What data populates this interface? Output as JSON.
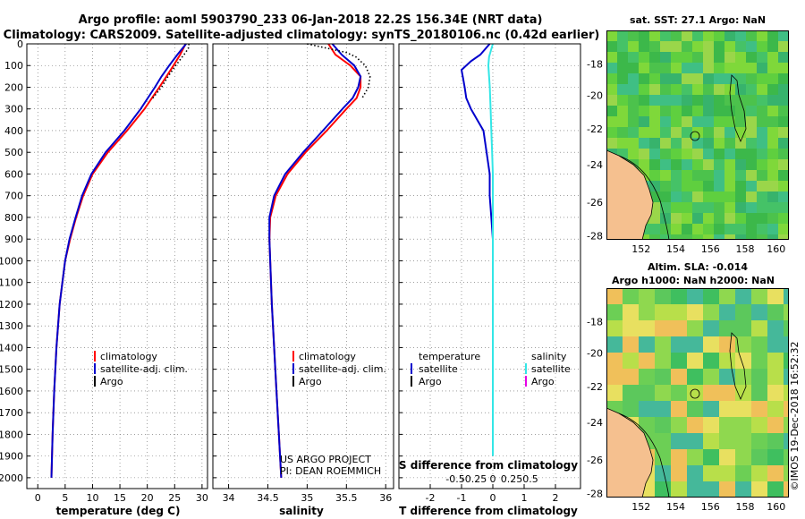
{
  "title_line1": "Argo profile: aoml 5903790_233 06-Jan-2018 22.2S 156.34E (NRT data)",
  "title_line2": "Climatology: CARS2009. Satellite-adjusted climatology: synTS_20180106.nc (0.42d earlier)",
  "credit_line1": "US ARGO PROJECT",
  "credit_line2": "PI: DEAN ROEMMICH",
  "timestamp": "©IMOS 19-Dec-2018 16:52:32",
  "colors": {
    "climatology": "#ff0000",
    "satellite": "#0000cc",
    "argo": "#000000",
    "salinity_satellite": "#33e6e6",
    "salinity_argo": "#e600e6",
    "land": "#f5c08f",
    "sea_green": "#3cbf3c"
  },
  "map_sst": {
    "title": "sat. SST: 27.1 Argo: NaN",
    "x_ticks": [
      "152",
      "154",
      "156",
      "158",
      "160"
    ],
    "y_ticks": [
      "-18",
      "-20",
      "-22",
      "-24",
      "-26",
      "-28"
    ]
  },
  "map_sla": {
    "title_line1": "Altim. SLA: -0.014",
    "title_line2": "Argo h1000: NaN h2000: NaN",
    "x_ticks": [
      "152",
      "154",
      "156",
      "158",
      "160"
    ],
    "y_ticks": [
      "-18",
      "-20",
      "-22",
      "-24",
      "-26",
      "-28"
    ]
  },
  "chart_data": [
    {
      "type": "line",
      "panel": "temperature",
      "xlabel": "temperature (deg C)",
      "ylabel": "",
      "xlim": [
        -2,
        31
      ],
      "ylim": [
        2050,
        0
      ],
      "x_ticks": [
        0,
        5,
        10,
        15,
        20,
        25,
        30
      ],
      "y_ticks": [
        0,
        100,
        200,
        300,
        400,
        500,
        600,
        700,
        800,
        900,
        1000,
        1100,
        1200,
        1300,
        1400,
        1500,
        1600,
        1700,
        1800,
        1900,
        2000
      ],
      "grid": "dotted",
      "legend": [
        "climatology",
        "satellite-adj. clim.",
        "Argo"
      ],
      "legend_position": "lower-right",
      "series": [
        {
          "name": "climatology",
          "depth": [
            0,
            50,
            100,
            150,
            200,
            300,
            400,
            500,
            600,
            700,
            800,
            900,
            1000,
            1200,
            1400,
            1600,
            1800,
            2000
          ],
          "values": [
            27.0,
            26.0,
            24.8,
            23.5,
            22.2,
            19.5,
            16.3,
            12.8,
            10.0,
            8.3,
            7.0,
            5.9,
            5.0,
            4.0,
            3.4,
            3.0,
            2.7,
            2.5
          ]
        },
        {
          "name": "satellite-adj. clim.",
          "depth": [
            0,
            50,
            100,
            150,
            200,
            300,
            400,
            500,
            600,
            700,
            800,
            900,
            1000,
            1200,
            1400,
            1600,
            1800,
            2000
          ],
          "values": [
            27.1,
            25.5,
            24.0,
            22.6,
            21.4,
            18.8,
            15.8,
            12.4,
            9.8,
            8.1,
            6.9,
            5.8,
            5.0,
            4.0,
            3.4,
            3.0,
            2.7,
            2.5
          ]
        },
        {
          "name": "Argo",
          "depth": [
            0,
            20,
            40,
            60,
            100,
            150,
            200,
            250
          ],
          "values": [
            27.6,
            27.5,
            27.0,
            26.4,
            25.2,
            23.8,
            22.6,
            21.0
          ]
        }
      ]
    },
    {
      "type": "line",
      "panel": "salinity",
      "xlabel": "salinity",
      "ylabel": "",
      "xlim": [
        33.8,
        36.1
      ],
      "ylim": [
        2050,
        0
      ],
      "x_ticks": [
        34,
        34.5,
        35,
        35.5,
        36
      ],
      "grid": "dotted",
      "legend": [
        "climatology",
        "satellite-adj. clim.",
        "Argo"
      ],
      "legend_position": "lower-right",
      "series": [
        {
          "name": "climatology",
          "depth": [
            0,
            50,
            100,
            150,
            200,
            250,
            300,
            400,
            500,
            600,
            700,
            800,
            900,
            1000,
            1200,
            1400,
            1600,
            1800,
            2000
          ],
          "values": [
            35.27,
            35.36,
            35.55,
            35.68,
            35.68,
            35.63,
            35.5,
            35.25,
            34.98,
            34.75,
            34.6,
            34.53,
            34.52,
            34.53,
            34.55,
            34.58,
            34.61,
            34.64,
            34.67
          ]
        },
        {
          "name": "satellite-adj. clim.",
          "depth": [
            0,
            50,
            100,
            150,
            200,
            250,
            300,
            400,
            500,
            600,
            700,
            800,
            900,
            1000,
            1200,
            1400,
            1600,
            1800,
            2000
          ],
          "values": [
            35.32,
            35.44,
            35.6,
            35.68,
            35.65,
            35.58,
            35.45,
            35.2,
            34.95,
            34.72,
            34.58,
            34.52,
            34.52,
            34.53,
            34.55,
            34.58,
            34.61,
            34.64,
            34.67
          ]
        },
        {
          "name": "Argo",
          "depth": [
            0,
            20,
            40,
            60,
            100,
            150,
            200,
            250
          ],
          "values": [
            35.0,
            35.25,
            35.5,
            35.62,
            35.74,
            35.8,
            35.78,
            35.7
          ]
        }
      ]
    },
    {
      "type": "line",
      "panel": "difference",
      "xlabel": "T difference from climatology",
      "ylabel": "",
      "xlim": [
        -3,
        2.8
      ],
      "ylim": [
        2050,
        0
      ],
      "x_ticks": [
        -2,
        -1,
        0,
        1,
        2
      ],
      "secondary_xlabel": "S difference from climatology",
      "secondary_x_ticks": [
        -0.5,
        -0.25,
        0,
        0.25,
        0.5
      ],
      "grid": "dotted",
      "legend_temperature_title": "temperature",
      "legend_salinity_title": "salinity",
      "legend_temperature": [
        "satellite",
        "Argo"
      ],
      "legend_salinity": [
        "satellite",
        "Argo"
      ],
      "series": [
        {
          "name": "satellite",
          "depth": [
            0,
            50,
            80,
            120,
            160,
            200,
            250,
            300,
            350,
            400,
            500,
            600,
            700,
            800,
            900,
            1000,
            1100,
            1200
          ],
          "values": [
            -0.1,
            -0.4,
            -0.7,
            -1.0,
            -0.95,
            -0.9,
            -0.85,
            -0.7,
            -0.5,
            -0.3,
            -0.2,
            -0.1,
            -0.1,
            -0.05,
            0.0,
            0.0,
            0.0,
            0.0
          ]
        },
        {
          "name": "salinity satellite",
          "depth": [
            0,
            60,
            100,
            150,
            200,
            300,
            400,
            500,
            600,
            800,
            1000,
            1200,
            1400,
            1600,
            1800,
            1900
          ],
          "values": [
            0.0,
            -0.05,
            -0.06,
            -0.05,
            -0.04,
            -0.03,
            -0.02,
            -0.01,
            0.0,
            0.0,
            0.0,
            0.0,
            0.0,
            0.0,
            0.0,
            0.0
          ]
        }
      ]
    }
  ]
}
